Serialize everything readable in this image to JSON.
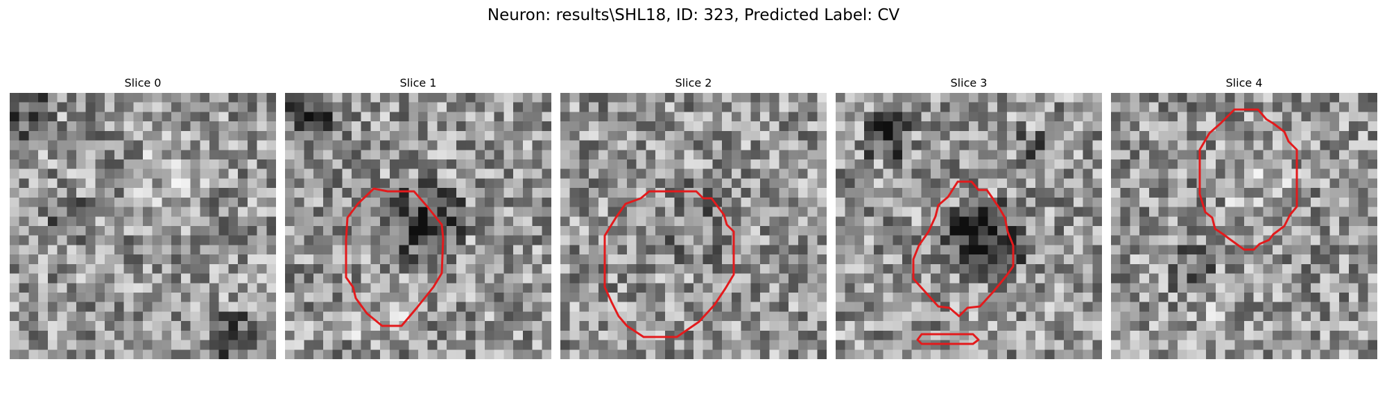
{
  "figure": {
    "title": "Neuron: results\\SHL18, ID: 323, Predicted Label: CV",
    "colormap": "gray",
    "outline_color": "#e31a1c",
    "slices": [
      {
        "title": "Slice 0",
        "has_outline": false,
        "seed": 11
      },
      {
        "title": "Slice 1",
        "has_outline": true,
        "seed": 23
      },
      {
        "title": "Slice 2",
        "has_outline": true,
        "seed": 37
      },
      {
        "title": "Slice 3",
        "has_outline": true,
        "seed": 51
      },
      {
        "title": "Slice 4",
        "has_outline": true,
        "seed": 67
      }
    ]
  }
}
